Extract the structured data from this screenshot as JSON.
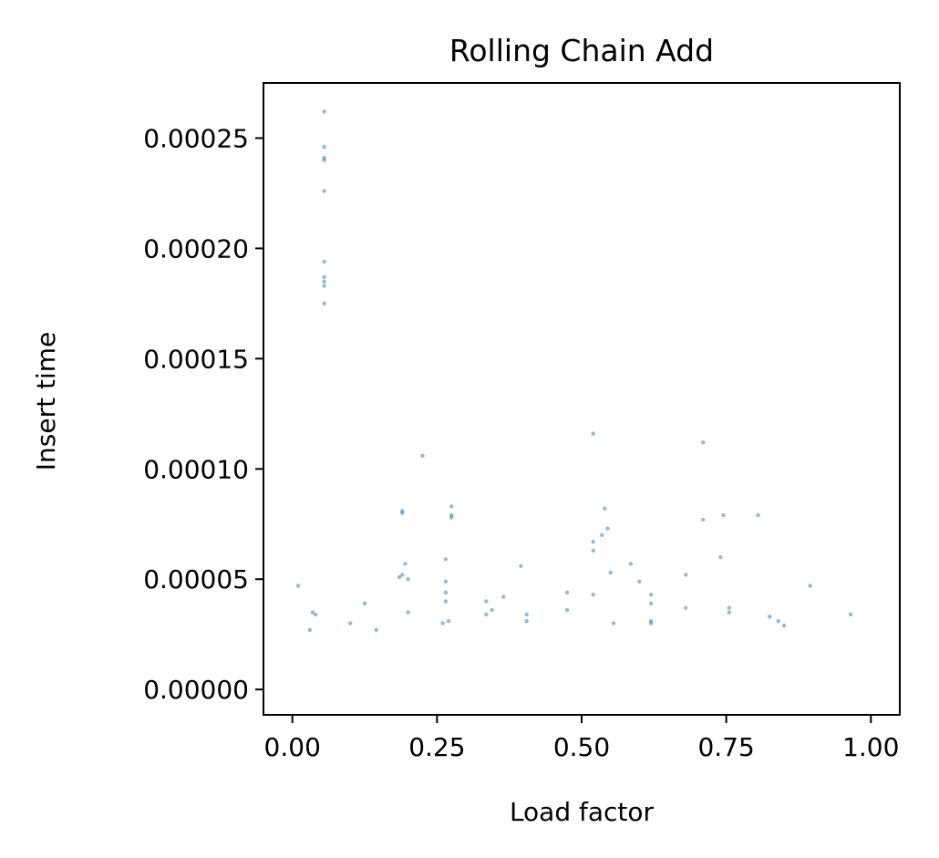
{
  "chart_data": {
    "type": "scatter",
    "title": "Rolling Chain Add",
    "xlabel": "Load factor",
    "ylabel": "Insert time",
    "xlim": [
      -0.05,
      1.05
    ],
    "ylim": [
      -1.15e-05,
      0.000275
    ],
    "x_ticks": [
      {
        "value": 0.0,
        "label": "0.00"
      },
      {
        "value": 0.25,
        "label": "0.25"
      },
      {
        "value": 0.5,
        "label": "0.50"
      },
      {
        "value": 0.75,
        "label": "0.75"
      },
      {
        "value": 1.0,
        "label": "1.00"
      }
    ],
    "y_ticks": [
      {
        "value": 0.0,
        "label": "0.00000"
      },
      {
        "value": 5e-05,
        "label": "0.00005"
      },
      {
        "value": 0.0001,
        "label": "0.00010"
      },
      {
        "value": 0.00015,
        "label": "0.00015"
      },
      {
        "value": 0.0002,
        "label": "0.00020"
      },
      {
        "value": 0.00025,
        "label": "0.00025"
      }
    ],
    "grid": false,
    "legend": "none",
    "color": "#1f77b4",
    "series": [
      {
        "points": [
          [
            0.055,
            0.000262
          ],
          [
            0.055,
            0.000246
          ],
          [
            0.055,
            0.000241
          ],
          [
            0.055,
            0.00024
          ],
          [
            0.055,
            0.000226
          ],
          [
            0.055,
            0.000194
          ],
          [
            0.055,
            0.000187
          ],
          [
            0.055,
            0.000185
          ],
          [
            0.055,
            0.000183
          ],
          [
            0.055,
            0.000175
          ],
          [
            0.225,
            0.000106
          ],
          [
            0.52,
            0.000116
          ],
          [
            0.71,
            0.000112
          ],
          [
            0.19,
            8.1e-05
          ],
          [
            0.19,
            8e-05
          ],
          [
            0.275,
            8.3e-05
          ],
          [
            0.275,
            7.9e-05
          ],
          [
            0.275,
            7.8e-05
          ],
          [
            0.54,
            8.2e-05
          ],
          [
            0.545,
            7.3e-05
          ],
          [
            0.535,
            7e-05
          ],
          [
            0.52,
            6.7e-05
          ],
          [
            0.52,
            6.3e-05
          ],
          [
            0.71,
            7.7e-05
          ],
          [
            0.745,
            7.9e-05
          ],
          [
            0.805,
            7.9e-05
          ],
          [
            0.74,
            6e-05
          ],
          [
            0.265,
            5.9e-05
          ],
          [
            0.395,
            5.6e-05
          ],
          [
            0.585,
            5.7e-05
          ],
          [
            0.55,
            5.3e-05
          ],
          [
            0.195,
            5.7e-05
          ],
          [
            0.19,
            5.2e-05
          ],
          [
            0.2,
            5e-05
          ],
          [
            0.185,
            5.1e-05
          ],
          [
            0.01,
            4.7e-05
          ],
          [
            0.265,
            4.9e-05
          ],
          [
            0.6,
            4.9e-05
          ],
          [
            0.68,
            5.2e-05
          ],
          [
            0.895,
            4.7e-05
          ],
          [
            0.475,
            4.4e-05
          ],
          [
            0.52,
            4.3e-05
          ],
          [
            0.365,
            4.2e-05
          ],
          [
            0.265,
            4.4e-05
          ],
          [
            0.265,
            4e-05
          ],
          [
            0.335,
            4e-05
          ],
          [
            0.345,
            3.6e-05
          ],
          [
            0.335,
            3.4e-05
          ],
          [
            0.62,
            4.3e-05
          ],
          [
            0.62,
            3.9e-05
          ],
          [
            0.68,
            3.7e-05
          ],
          [
            0.755,
            3.7e-05
          ],
          [
            0.755,
            3.5e-05
          ],
          [
            0.965,
            3.4e-05
          ],
          [
            0.035,
            3.5e-05
          ],
          [
            0.04,
            3.4e-05
          ],
          [
            0.125,
            3.9e-05
          ],
          [
            0.2,
            3.5e-05
          ],
          [
            0.405,
            3.4e-05
          ],
          [
            0.475,
            3.6e-05
          ],
          [
            0.62,
            3.1e-05
          ],
          [
            0.62,
            3e-05
          ],
          [
            0.825,
            3.3e-05
          ],
          [
            0.84,
            3.1e-05
          ],
          [
            0.85,
            2.9e-05
          ],
          [
            0.27,
            3.1e-05
          ],
          [
            0.26,
            3e-05
          ],
          [
            0.555,
            3e-05
          ],
          [
            0.405,
            3.1e-05
          ],
          [
            0.1,
            3e-05
          ],
          [
            0.145,
            2.7e-05
          ],
          [
            0.03,
            2.7e-05
          ]
        ]
      }
    ]
  }
}
